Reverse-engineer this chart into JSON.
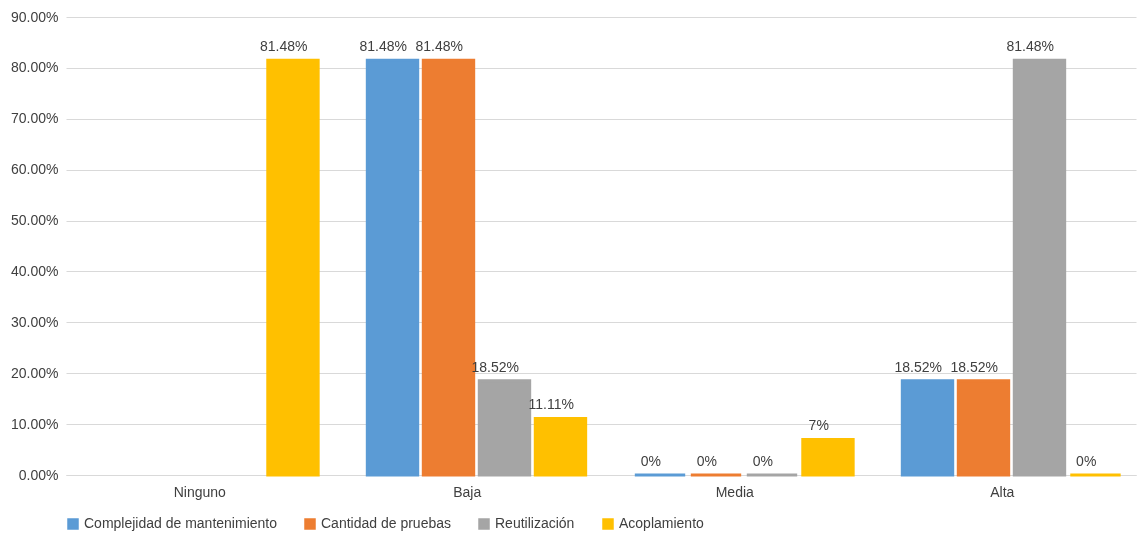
{
  "chart_data": {
    "type": "bar",
    "categories": [
      "Ninguno",
      "Baja",
      "Media",
      "Alta"
    ],
    "series": [
      {
        "name": "Complejidad de mantenimiento",
        "color": "#5b9bd5",
        "values": [
          null,
          81.48,
          0,
          18.52
        ],
        "value_labels": [
          null,
          "81.48%",
          "0%",
          "18.52%"
        ]
      },
      {
        "name": "Cantidad de pruebas",
        "color": "#ed7d31",
        "values": [
          null,
          81.48,
          0,
          18.52
        ],
        "value_labels": [
          null,
          "81.48%",
          "0%",
          "18.52%"
        ]
      },
      {
        "name": "Reutilización",
        "color": "#a5a5a5",
        "values": [
          null,
          18.52,
          0,
          81.48
        ],
        "value_labels": [
          null,
          "18.52%",
          "0%",
          "81.48%"
        ]
      },
      {
        "name": "Acoplamiento",
        "color": "#ffc000",
        "values": [
          81.48,
          11.11,
          7,
          0
        ],
        "value_labels": [
          "81.48%",
          "11.11%",
          "7%",
          "0%"
        ]
      }
    ],
    "ylim": [
      0,
      90
    ],
    "yticks": [
      {
        "value": 0,
        "label": "0.00%"
      },
      {
        "value": 10,
        "label": "10.00%"
      },
      {
        "value": 20,
        "label": "20.00%"
      },
      {
        "value": 30,
        "label": "30.00%"
      },
      {
        "value": 40,
        "label": "40.00%"
      },
      {
        "value": 50,
        "label": "50.00%"
      },
      {
        "value": 60,
        "label": "60.00%"
      },
      {
        "value": 70,
        "label": "70.00%"
      },
      {
        "value": 80,
        "label": "80.00%"
      },
      {
        "value": 90,
        "label": "90.00%"
      }
    ],
    "grid": "y",
    "legend": "bottom"
  }
}
